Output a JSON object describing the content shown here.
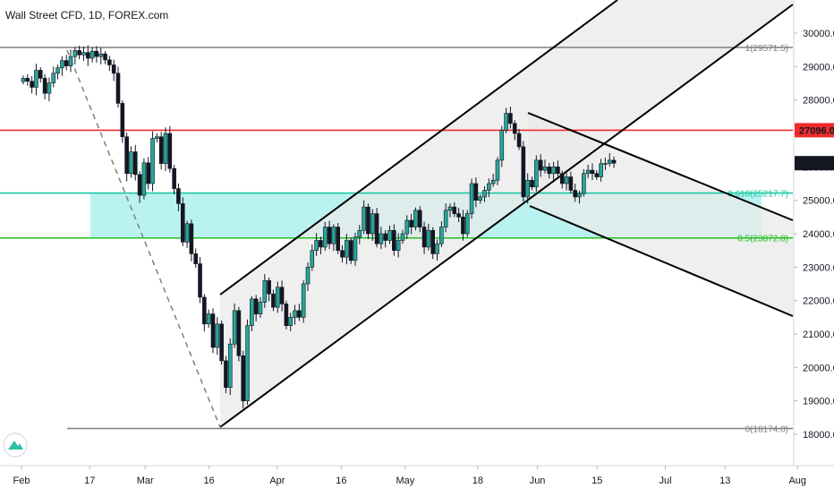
{
  "chart_title": "Wall Street CFD, 1D, FOREX.com",
  "colors": {
    "up": "#26a69a",
    "down": "#131722",
    "resistance": "#ef2b2b",
    "fib_618": "#1ec8a5",
    "fib_05": "#22c122",
    "zone": "#b3f0f0",
    "channel_fill": "#e9e9e9",
    "grey_line": "#7f7f7f"
  },
  "chart_data": {
    "type": "candlestick",
    "title": "Wall Street CFD, 1D, FOREX.com",
    "ylim": [
      17000,
      30800
    ],
    "y_ticks": [
      "18000.0",
      "19000.0",
      "20000.0",
      "21000.0",
      "22000.0",
      "23000.0",
      "24000.0",
      "25000.0",
      "26000.0",
      "27000.0",
      "28000.0",
      "29000.0",
      "30000.0"
    ],
    "y_tick_values": [
      18000,
      19000,
      20000,
      21000,
      22000,
      23000,
      24000,
      25000,
      26000,
      27000,
      28000,
      29000,
      30000
    ],
    "x_labels": [
      "Feb",
      "17",
      "Mar",
      "16",
      "Apr",
      "16",
      "May",
      "18",
      "Jun",
      "15",
      "Jul",
      "13",
      "Aug"
    ],
    "x_label_days": [
      0,
      16,
      29,
      44,
      60,
      75,
      90,
      107,
      121,
      135,
      151,
      165,
      182
    ],
    "price_labels": {
      "resistance": "27096.0",
      "last": "26110.5"
    },
    "levels": {
      "top": {
        "value": 29571.5,
        "label": "1(29571.5)"
      },
      "resistance": {
        "value": 27096.0
      },
      "fib_618": {
        "value": 25217.7,
        "label": "0.618(25217.7)"
      },
      "fib_05": {
        "value": 23872.8,
        "label": "0.5(23872.8)"
      },
      "bottom": {
        "value": 18174.0,
        "label": "0(18174.0)"
      }
    },
    "closes": [
      28650,
      28560,
      28380,
      28890,
      28650,
      28200,
      28510,
      28800,
      28960,
      29180,
      29020,
      29300,
      29480,
      29350,
      29420,
      29250,
      29460,
      29300,
      29380,
      29200,
      29050,
      28800,
      27900,
      26900,
      25800,
      26450,
      25770,
      25150,
      26120,
      25500,
      26850,
      26900,
      26100,
      27000,
      25950,
      25350,
      24900,
      23750,
      24300,
      23400,
      23100,
      22100,
      21300,
      21600,
      20600,
      21300,
      20200,
      19400,
      20700,
      21700,
      20350,
      19000,
      21250,
      22050,
      21600,
      21950,
      22600,
      22200,
      21800,
      22400,
      21900,
      21250,
      21500,
      21700,
      21500,
      22500,
      23000,
      23500,
      23800,
      23600,
      24200,
      23700,
      24200,
      23500,
      23300,
      23800,
      23200,
      23900,
      24100,
      24800,
      24000,
      24600,
      23700,
      24000,
      23800,
      24100,
      23500,
      23800,
      24000,
      24400,
      24200,
      24700,
      24200,
      23600,
      24100,
      23400,
      23700,
      24200,
      24700,
      24800,
      24600,
      24500,
      24000,
      24600,
      25500,
      25000,
      25100,
      25300,
      25500,
      25600,
      26200,
      27100,
      27600,
      27300,
      27000,
      26600,
      25100,
      25600,
      25400,
      26200,
      25900,
      26000,
      25800,
      26000,
      25800,
      25500,
      25700,
      25300,
      25100,
      25200,
      25800,
      25900,
      25800,
      25700,
      26100,
      26100,
      26200,
      26110.5
    ],
    "note": ""
  }
}
